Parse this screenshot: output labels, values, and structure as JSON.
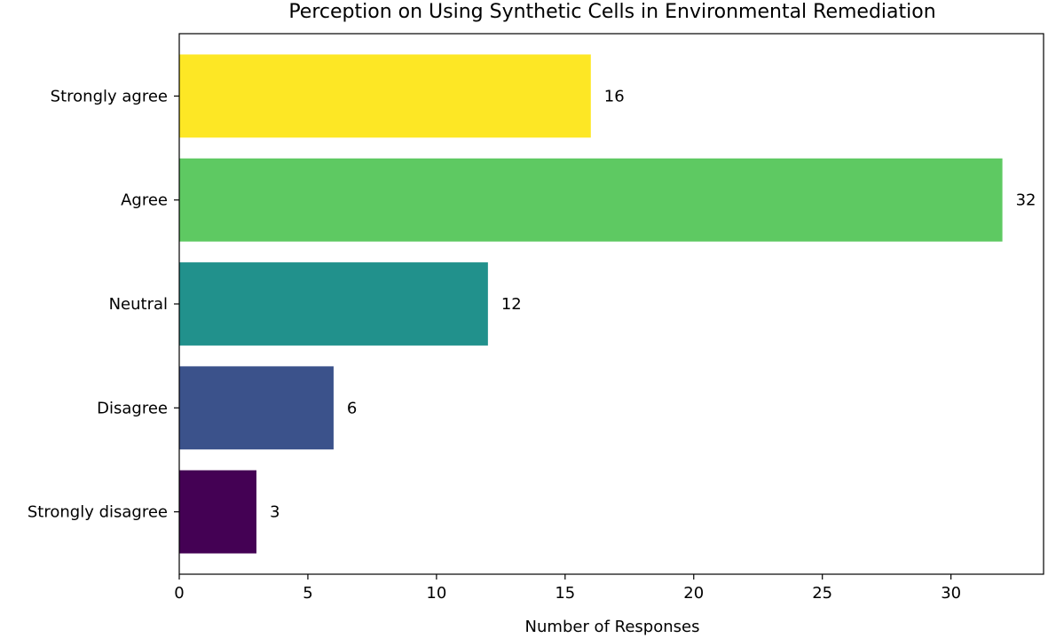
{
  "chart_data": {
    "type": "bar",
    "orientation": "horizontal",
    "title": "Perception on Using Synthetic Cells in Environmental Remediation",
    "xlabel": "Number of Responses",
    "ylabel": "",
    "categories": [
      "Strongly agree",
      "Agree",
      "Neutral",
      "Disagree",
      "Strongly disagree"
    ],
    "values": [
      16,
      32,
      12,
      6,
      3
    ],
    "colors": [
      "#fde725",
      "#5ec962",
      "#21918c",
      "#3b528b",
      "#440154"
    ],
    "xlim": [
      0,
      33.6
    ],
    "xticks": [
      0,
      5,
      10,
      15,
      20,
      25,
      30
    ],
    "xtick_labels": [
      "0",
      "5",
      "10",
      "15",
      "20",
      "25",
      "30"
    ],
    "value_labels": [
      "16",
      "32",
      "12",
      "6",
      "3"
    ],
    "grid": false,
    "legend": "none"
  }
}
